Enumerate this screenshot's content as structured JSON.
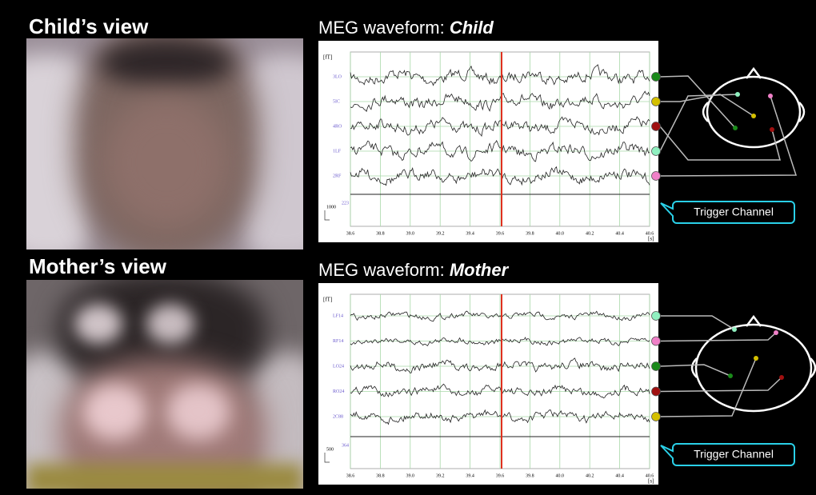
{
  "panels": [
    {
      "view_title": "Child’s view",
      "waveform_title": "MEG waveform: ",
      "subject": "Child",
      "unit": "[fT]",
      "time_unit": "[s]",
      "scale": 1000,
      "channels": [
        "3LO",
        "5IC",
        "4RO",
        "1LF",
        "2RF"
      ],
      "channel_colors": [
        "#1a8a1a",
        "#d4c000",
        "#a01010",
        "#90f0c0",
        "#f080c8"
      ],
      "trigger_label": 223,
      "trigger_callout": "Trigger Channel",
      "xticks": [
        38.6,
        38.8,
        {
          "value": 39.0,
          "label": "39.0"
        },
        39.2,
        39.4,
        39.6,
        39.8,
        {
          "value": 40.0,
          "label": "40.0"
        },
        40.2,
        40.4,
        40.6
      ]
    },
    {
      "view_title": "Mother’s view",
      "waveform_title": "MEG waveform: ",
      "subject": "Mother",
      "unit": "[fT]",
      "time_unit": "[s]",
      "scale": 500,
      "channels": [
        "LF14",
        "RF14",
        "LO24",
        "RO24",
        "2C88"
      ],
      "channel_colors": [
        "#90f0c0",
        "#f080c8",
        "#1a8a1a",
        "#a01010",
        "#d4c000"
      ],
      "trigger_label": 364,
      "trigger_callout": "Trigger Channel",
      "xticks": [
        38.6,
        38.8,
        {
          "value": 39.0,
          "label": "39.0"
        },
        39.2,
        39.4,
        39.6,
        39.8,
        {
          "value": 40.0,
          "label": "40.0"
        },
        40.2,
        40.4,
        40.6
      ]
    }
  ]
}
